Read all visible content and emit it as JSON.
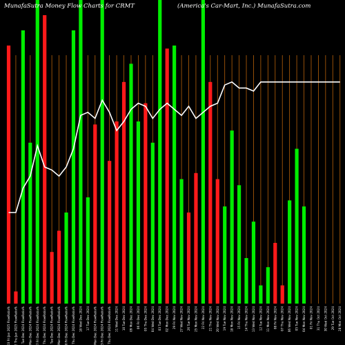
{
  "header": {
    "title_left": "MunafaSutra  Money Flow  Charts for CRMT",
    "title_right": "(America's Car-Mart,  Inc.) MunafaSutra.com"
  },
  "chart_data": {
    "type": "bar",
    "title": "MunafaSutra  Money Flow  Charts for CRMT (America's Car-Mart,  Inc.) MunafaSutra.com",
    "xlabel": "",
    "ylabel": "",
    "ylim": [
      0,
      100
    ],
    "grid": true,
    "colors": {
      "up": "#00ee00",
      "down": "#ff1a1a",
      "line": "#ffffff",
      "gridline": "#b8620a",
      "background": "#000000"
    },
    "categories": [
      "03 Fri Jan 2025",
      "02 Thu Jan 2025",
      "31 Tue Dec 2024",
      "30 Mon Dec 2024",
      "27 Fri Dec 2024",
      "26 Thu Dec 2024",
      "24 Tue Dec 2024",
      "23 Mon Dec 2024",
      "20 Fri Dec 2024",
      "19 Thu Dec 2024",
      "18 Wed Dec 2024",
      "17 Tue Dec 2024",
      "16 Mon Dec 2024",
      "13 Fri Dec 2024",
      "12 Thu Dec 2024",
      "11 Wed Dec 2024",
      "10 Tue Dec 2024",
      "09 Mon Dec 2024",
      "06 Fri Dec 2024",
      "05 Thu Dec 2024",
      "04 Wed Dec 2024",
      "03 Tue Dec 2024",
      "02 Mon Dec 2024",
      "29 Fri Nov 2024",
      "27 Wed Nov 2024",
      "26 Tue Nov 2024",
      "25 Mon Nov 2024",
      "22 Fri Nov 2024",
      "21 Thu Nov 2024",
      "20 Wed Nov 2024",
      "19 Tue Nov 2024",
      "18 Mon Nov 2024",
      "15 Fri Nov 2024",
      "14 Thu Nov 2024",
      "13 Wed Nov 2024",
      "12 Tue Nov 2024",
      "11 Mon Nov 2024",
      "08 Fri Nov 2024",
      "07 Thu Nov 2024",
      "06 Wed Nov 2024",
      "05 Tue Nov 2024",
      "04 Mon Nov 2024",
      "01 Fri Nov 2024",
      "31 Thu Oct 2024",
      "30 Wed Oct 2024",
      "29 Tue Oct 2024",
      "28 Mon Oct 2024"
    ],
    "tick_labels": [
      "03 Fri Jan 2025 FlowRatio%",
      "02 Thu Jan 2025 FlowRatio%",
      "31 Tue Dec 2024 FlowRatio%",
      "30 Mon Dec 2024 FlowRatio%",
      "27 Fri Dec 2024 FlowRatio%",
      "26 Thu Dec 2024 FlowRatio%",
      "24 Tue Dec 2024 FlowRatio%",
      "23 Mon Dec 2024 FlowRatio%",
      "20 Fri Dec 2024 FlowRatio%",
      "19 Thu Dec 2024 FlowRatio%",
      "18 Wed Dec 2024",
      "17 Tue Dec 2024",
      "16 Mon Dec 2024 FlowRatio%",
      "13 Fri Dec 2024 FlowRatio%",
      "12 Thu Dec 2024 FlowRatio%",
      "11 Wed Dec 2024",
      "10 Tue Dec 2024",
      "09 Mon Dec 2024",
      "06 Fri Dec 2024",
      "05 Thu Dec 2024",
      "04 Wed Dec 2024",
      "03 Tue Dec 2024",
      "02 Mon Dec 2024",
      "29 Fri Nov 2024",
      "27 Wed Nov 2024",
      "26 Tue Nov 2024",
      "25 Mon Nov 2024",
      "22 Fri Nov 2024",
      "21 Thu Nov 2024",
      "20 Wed Nov 2024",
      "19 Tue Nov 2024",
      "18 Mon Nov 2024",
      "15 Fri Nov 2024",
      "14 Thu Nov 2024",
      "13 Wed Nov 2024",
      "12 Tue Nov 2024",
      "11 Mon Nov 2024",
      "08 Fri Nov 2024",
      "07 Thu Nov 2024",
      "06 Wed Nov 2024",
      "05 Tue Nov 2024",
      "04 Mon Nov 2024",
      "01 Fri Nov 2024",
      "31 Thu Oct 2024",
      "30 Wed Oct 2024",
      "29 Tue Oct 2024",
      "28 Mon Oct 2024"
    ],
    "series": [
      {
        "kind": "bars",
        "values": [
          85,
          4,
          90,
          53,
          100,
          95,
          17,
          24,
          30,
          90,
          100,
          35,
          59,
          100,
          47,
          60,
          73,
          79,
          60,
          66,
          53,
          100,
          84,
          85,
          41,
          30,
          43,
          100,
          73,
          41,
          32,
          57,
          39,
          15,
          27,
          6,
          12,
          20,
          6,
          34,
          51,
          32,
          0,
          0,
          0,
          0,
          0
        ],
        "directions": [
          "down",
          "down",
          "up",
          "up",
          "up",
          "down",
          "down",
          "down",
          "up",
          "up",
          "up",
          "up",
          "down",
          "up",
          "down",
          "down",
          "down",
          "up",
          "up",
          "down",
          "up",
          "up",
          "down",
          "up",
          "up",
          "down",
          "down",
          "up",
          "down",
          "down",
          "up",
          "up",
          "up",
          "up",
          "up",
          "up",
          "up",
          "down",
          "down",
          "up",
          "up",
          "up",
          "up",
          "up",
          "up",
          "up",
          "up"
        ]
      },
      {
        "kind": "line",
        "values": [
          30,
          30,
          38,
          42,
          52,
          45,
          44,
          42,
          45,
          51,
          62,
          63,
          61,
          67,
          63,
          57,
          60,
          64,
          66,
          65,
          61,
          64,
          66,
          64,
          62,
          65,
          61,
          63,
          65,
          66,
          72,
          73,
          71,
          71,
          70,
          73,
          73,
          73,
          73,
          73,
          73,
          73,
          73,
          73,
          73,
          73,
          73
        ]
      }
    ]
  }
}
